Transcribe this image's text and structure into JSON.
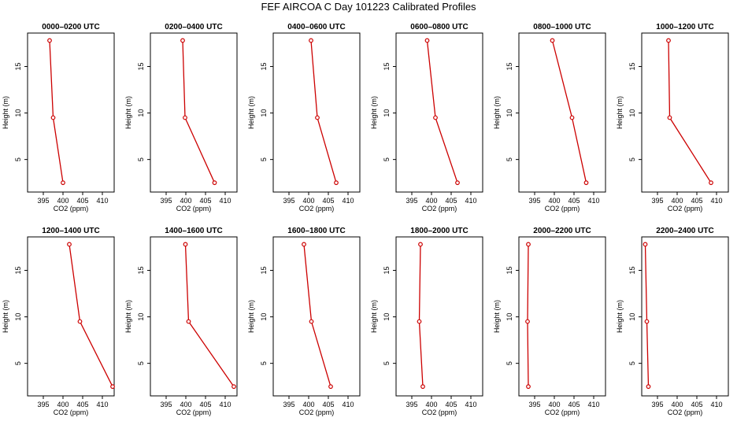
{
  "chart_data": {
    "title": "FEF AIRCOA C  Day 101223  Calibrated Profiles",
    "type": "line",
    "line_color": "#cc0000",
    "layout": "2x6",
    "xlabel": "CO2 (ppm)",
    "ylabel": "Height (m)",
    "xlim": [
      391,
      413
    ],
    "ylim": [
      1.5,
      18.6
    ],
    "xticks": [
      395,
      400,
      405,
      410
    ],
    "yticks": [
      5,
      10,
      15
    ],
    "grid": false,
    "panels": [
      {
        "title": "0000–0200 UTC",
        "heights": [
          17.8,
          9.5,
          2.5
        ],
        "co2": [
          396.6,
          397.5,
          400.0
        ]
      },
      {
        "title": "0200–0400 UTC",
        "heights": [
          17.8,
          9.5,
          2.5
        ],
        "co2": [
          399.2,
          399.8,
          407.3
        ]
      },
      {
        "title": "0400–0600 UTC",
        "heights": [
          17.8,
          9.5,
          2.5
        ],
        "co2": [
          400.6,
          402.2,
          407.0
        ]
      },
      {
        "title": "0600–0800 UTC",
        "heights": [
          17.8,
          9.5,
          2.5
        ],
        "co2": [
          398.9,
          401.0,
          406.6
        ]
      },
      {
        "title": "0800–1000 UTC",
        "heights": [
          17.8,
          9.5,
          2.5
        ],
        "co2": [
          399.5,
          404.5,
          408.1
        ]
      },
      {
        "title": "1000–1200 UTC",
        "heights": [
          17.8,
          9.5,
          2.5
        ],
        "co2": [
          397.8,
          398.1,
          408.6
        ]
      },
      {
        "title": "1200–1400 UTC",
        "heights": [
          17.8,
          9.5,
          2.5
        ],
        "co2": [
          401.6,
          404.3,
          412.6
        ]
      },
      {
        "title": "1400–1600 UTC",
        "heights": [
          17.8,
          9.5,
          2.5
        ],
        "co2": [
          399.9,
          400.7,
          412.2
        ]
      },
      {
        "title": "1600–1800 UTC",
        "heights": [
          17.8,
          9.5,
          2.5
        ],
        "co2": [
          398.8,
          400.7,
          405.6
        ]
      },
      {
        "title": "1800–2000 UTC",
        "heights": [
          17.8,
          9.5,
          2.5
        ],
        "co2": [
          397.2,
          396.9,
          397.8
        ]
      },
      {
        "title": "2000–2200 UTC",
        "heights": [
          17.8,
          9.5,
          2.5
        ],
        "co2": [
          393.4,
          393.2,
          393.4
        ]
      },
      {
        "title": "2200–2400 UTC",
        "heights": [
          17.8,
          9.5,
          2.5
        ],
        "co2": [
          391.9,
          392.3,
          392.7
        ]
      }
    ]
  }
}
